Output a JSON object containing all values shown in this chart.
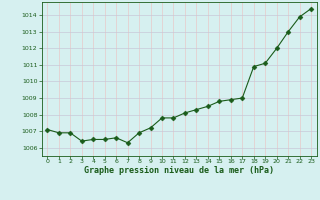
{
  "x": [
    0,
    1,
    2,
    3,
    4,
    5,
    6,
    7,
    8,
    9,
    10,
    11,
    12,
    13,
    14,
    15,
    16,
    17,
    18,
    19,
    20,
    21,
    22,
    23
  ],
  "y": [
    1007.1,
    1006.9,
    1006.9,
    1006.4,
    1006.5,
    1006.5,
    1006.6,
    1006.3,
    1006.9,
    1007.2,
    1007.8,
    1007.8,
    1008.1,
    1008.3,
    1008.5,
    1008.8,
    1008.9,
    1009.0,
    1010.9,
    1011.1,
    1012.0,
    1013.0,
    1013.9,
    1014.4
  ],
  "ylim": [
    1005.5,
    1014.8
  ],
  "yticks": [
    1006,
    1007,
    1008,
    1009,
    1010,
    1011,
    1012,
    1013,
    1014
  ],
  "xticks": [
    0,
    1,
    2,
    3,
    4,
    5,
    6,
    7,
    8,
    9,
    10,
    11,
    12,
    13,
    14,
    15,
    16,
    17,
    18,
    19,
    20,
    21,
    22,
    23
  ],
  "xlabel": "Graphe pression niveau de la mer (hPa)",
  "line_color": "#1a5c1a",
  "marker": "D",
  "marker_size": 2.5,
  "bg_color": "#d6f0f0",
  "grid_color_h": "#c8c8d8",
  "grid_color_v": "#e8c8c8",
  "tick_color": "#1a5c1a",
  "label_color": "#1a5c1a"
}
